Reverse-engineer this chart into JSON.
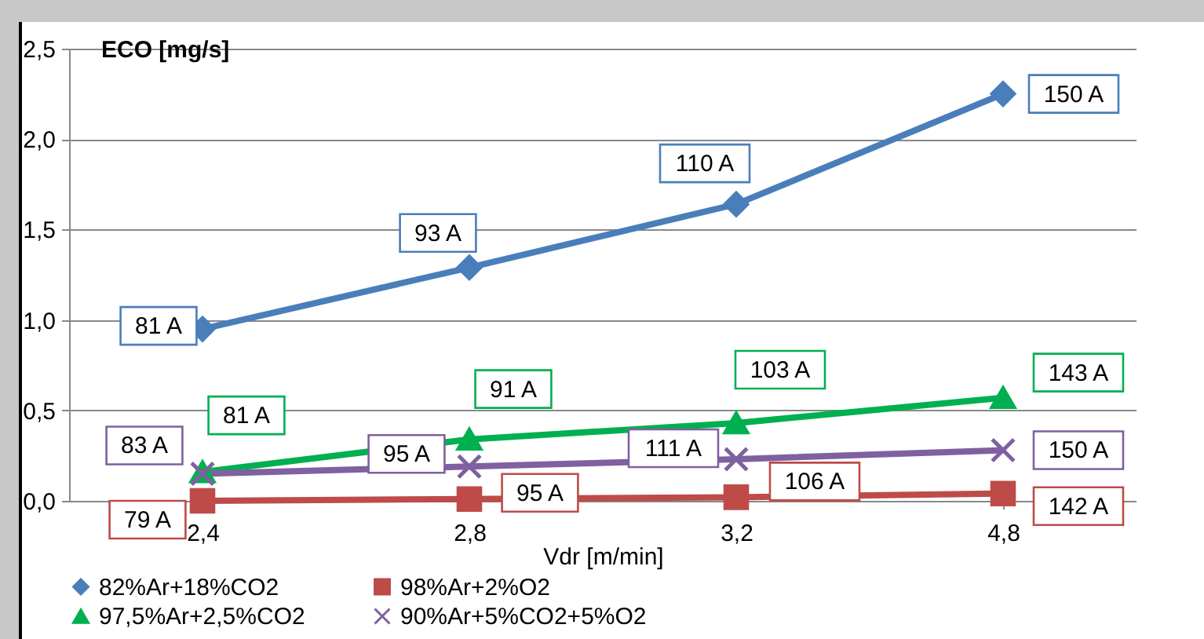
{
  "chart_data": {
    "type": "line",
    "ylabel": "ECO [mg/s]",
    "xlabel": "Vdr [m/min]",
    "categories": [
      "2,4",
      "2,8",
      "3,2",
      "4,8"
    ],
    "ylim": [
      0,
      2.5
    ],
    "yticks": [
      {
        "value": 0,
        "label": "0,0"
      },
      {
        "value": 0.5,
        "label": "0,5"
      },
      {
        "value": 1,
        "label": "1,0"
      },
      {
        "value": 1.5,
        "label": "1,5"
      },
      {
        "value": 2,
        "label": "2,0"
      },
      {
        "value": 2.5,
        "label": "2,5"
      }
    ],
    "grid": "y",
    "legend": "bottom",
    "series": [
      {
        "name": "82%Ar+18%CO2",
        "color": "#4a7ebb",
        "marker": "diamond",
        "values": [
          0.95,
          1.29,
          1.64,
          2.25
        ]
      },
      {
        "name": "98%Ar+2%O2",
        "color": "#be4b48",
        "marker": "square",
        "values": [
          0.0,
          0.01,
          0.02,
          0.04
        ]
      },
      {
        "name": "97,5%Ar+2,5%CO2",
        "color": "#00b050",
        "marker": "triangle",
        "values": [
          0.16,
          0.34,
          0.43,
          0.57
        ]
      },
      {
        "name": "90%Ar+5%CO2+5%O2",
        "color": "#7f60a0",
        "marker": "cross",
        "values": [
          0.15,
          0.19,
          0.23,
          0.28
        ]
      }
    ],
    "annotations": [
      {
        "text": "81 A",
        "x": "2,4",
        "y": 0.95
      },
      {
        "text": "93 A",
        "x": "2,8",
        "y": 1.29
      },
      {
        "text": "110 A",
        "x": "3,2",
        "y": 1.64
      },
      {
        "text": "150 A",
        "x": "4,8",
        "y": 2.25
      },
      {
        "text": "79 A",
        "x": "2,4",
        "y": 0.0
      },
      {
        "text": "95 A",
        "x": "2,8",
        "y": 0.01
      },
      {
        "text": "106 A",
        "x": "3,2",
        "y": 0.02
      },
      {
        "text": "142 A",
        "x": "4,8",
        "y": 0.04
      },
      {
        "text": "81 A",
        "x": "2,4",
        "y": 0.16
      },
      {
        "text": "91 A",
        "x": "2,8",
        "y": 0.34
      },
      {
        "text": "103 A",
        "x": "3,2",
        "y": 0.43
      },
      {
        "text": "143 A",
        "x": "4,8",
        "y": 0.57
      },
      {
        "text": "83 A",
        "x": "2,4",
        "y": 0.15
      },
      {
        "text": "95 A",
        "x": "2,8",
        "y": 0.19
      },
      {
        "text": "111 A",
        "x": "3,2",
        "y": 0.23
      },
      {
        "text": "150 A",
        "x": "4,8",
        "y": 0.28
      }
    ]
  }
}
